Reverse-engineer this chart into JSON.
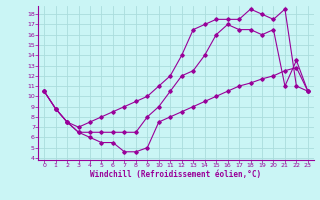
{
  "xlabel": "Windchill (Refroidissement éolien,°C)",
  "bg_color": "#caf5f5",
  "line_color": "#990099",
  "grid_color": "#aadddd",
  "xlim": [
    -0.5,
    23.5
  ],
  "ylim": [
    3.8,
    18.8
  ],
  "yticks": [
    4,
    5,
    6,
    7,
    8,
    9,
    10,
    11,
    12,
    13,
    14,
    15,
    16,
    17,
    18
  ],
  "xticks": [
    0,
    1,
    2,
    3,
    4,
    5,
    6,
    7,
    8,
    9,
    10,
    11,
    12,
    13,
    14,
    15,
    16,
    17,
    18,
    19,
    20,
    21,
    22,
    23
  ],
  "line1_x": [
    0,
    1,
    2,
    3,
    4,
    5,
    6,
    7,
    8,
    9,
    10,
    11,
    12,
    13,
    14,
    15,
    16,
    17,
    18,
    19,
    20,
    21,
    22,
    23
  ],
  "line1_y": [
    10.5,
    8.8,
    7.5,
    6.5,
    6.0,
    5.5,
    5.5,
    4.6,
    4.6,
    5.0,
    7.5,
    8.0,
    8.5,
    9.0,
    9.5,
    10.0,
    10.5,
    11.0,
    11.3,
    11.7,
    12.0,
    12.5,
    12.8,
    10.5
  ],
  "line2_x": [
    0,
    1,
    2,
    3,
    4,
    5,
    6,
    7,
    8,
    9,
    10,
    11,
    12,
    13,
    14,
    15,
    16,
    17,
    18,
    19,
    20,
    21,
    22,
    23
  ],
  "line2_y": [
    10.5,
    8.8,
    7.5,
    6.5,
    6.5,
    6.5,
    6.5,
    6.5,
    6.5,
    8.0,
    9.0,
    10.5,
    12.0,
    12.5,
    14.0,
    16.0,
    17.0,
    16.5,
    16.5,
    16.0,
    16.5,
    11.0,
    13.5,
    10.5
  ],
  "line3_x": [
    0,
    1,
    2,
    3,
    4,
    5,
    6,
    7,
    8,
    9,
    10,
    11,
    12,
    13,
    14,
    15,
    16,
    17,
    18,
    19,
    20,
    21,
    22,
    23
  ],
  "line3_y": [
    10.5,
    8.8,
    7.5,
    7.0,
    7.5,
    8.0,
    8.5,
    9.0,
    9.5,
    10.0,
    11.0,
    12.0,
    14.0,
    16.5,
    17.0,
    17.5,
    17.5,
    17.5,
    18.5,
    18.0,
    17.5,
    18.5,
    11.0,
    10.5
  ]
}
